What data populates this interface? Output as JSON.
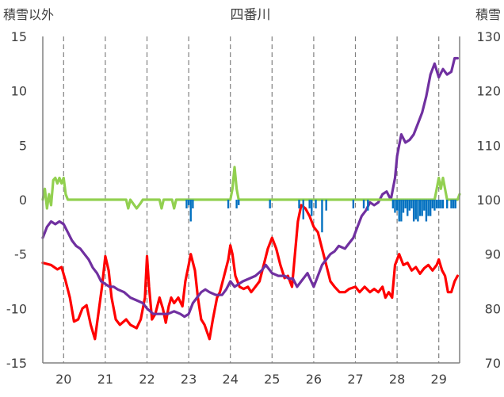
{
  "chart_data": {
    "type": "line",
    "title": "四番川",
    "ylabel_left": "積雪以外",
    "ylabel_right": "積雪",
    "x_ticks": [
      "20",
      "21",
      "22",
      "23",
      "24",
      "25",
      "26",
      "27",
      "28",
      "29"
    ],
    "xlim": [
      19.5,
      29.5
    ],
    "ylim_left": [
      -15,
      15
    ],
    "ylim_right": [
      70,
      130
    ],
    "y_ticks_left": [
      "15",
      "10",
      "5",
      "0",
      "-5",
      "-10",
      "-15"
    ],
    "y_ticks_right": [
      "130",
      "120",
      "110",
      "100",
      "90",
      "80",
      "70"
    ],
    "grid": {
      "vertical_dashed": true,
      "horizontal": false
    },
    "colors": {
      "red": "#ff0000",
      "purple": "#7030a0",
      "green": "#92d050",
      "blue": "#0070c0",
      "axis": "#808080"
    },
    "series": [
      {
        "color": "red",
        "axis": "left",
        "points": [
          [
            19.5,
            -5.8
          ],
          [
            19.7,
            -6.0
          ],
          [
            19.85,
            -6.4
          ],
          [
            19.95,
            -6.2
          ],
          [
            20.05,
            -7.5
          ],
          [
            20.15,
            -9.0
          ],
          [
            20.25,
            -11.2
          ],
          [
            20.35,
            -11.0
          ],
          [
            20.45,
            -10.0
          ],
          [
            20.55,
            -9.7
          ],
          [
            20.65,
            -11.5
          ],
          [
            20.75,
            -12.8
          ],
          [
            20.85,
            -10.0
          ],
          [
            20.92,
            -8.0
          ],
          [
            21.0,
            -5.2
          ],
          [
            21.08,
            -6.5
          ],
          [
            21.15,
            -9.0
          ],
          [
            21.25,
            -11.0
          ],
          [
            21.35,
            -11.5
          ],
          [
            21.5,
            -11.0
          ],
          [
            21.6,
            -11.5
          ],
          [
            21.75,
            -11.8
          ],
          [
            21.85,
            -11.0
          ],
          [
            21.95,
            -9.0
          ],
          [
            22.0,
            -5.2
          ],
          [
            22.05,
            -8.0
          ],
          [
            22.12,
            -11.0
          ],
          [
            22.2,
            -10.5
          ],
          [
            22.3,
            -9.0
          ],
          [
            22.38,
            -10.0
          ],
          [
            22.45,
            -11.3
          ],
          [
            22.52,
            -9.8
          ],
          [
            22.58,
            -9.0
          ],
          [
            22.65,
            -9.5
          ],
          [
            22.75,
            -9.0
          ],
          [
            22.85,
            -9.8
          ],
          [
            22.92,
            -7.5
          ],
          [
            23.0,
            -6.0
          ],
          [
            23.05,
            -5.0
          ],
          [
            23.15,
            -6.5
          ],
          [
            23.22,
            -9.0
          ],
          [
            23.3,
            -11.0
          ],
          [
            23.38,
            -11.5
          ],
          [
            23.5,
            -12.8
          ],
          [
            23.58,
            -11.0
          ],
          [
            23.68,
            -9.0
          ],
          [
            23.75,
            -8.5
          ],
          [
            23.85,
            -7.0
          ],
          [
            23.95,
            -5.5
          ],
          [
            24.0,
            -4.2
          ],
          [
            24.05,
            -5.0
          ],
          [
            24.12,
            -7.0
          ],
          [
            24.22,
            -8.0
          ],
          [
            24.32,
            -8.2
          ],
          [
            24.42,
            -8.0
          ],
          [
            24.5,
            -8.5
          ],
          [
            24.6,
            -8.0
          ],
          [
            24.7,
            -7.5
          ],
          [
            24.8,
            -6.0
          ],
          [
            24.9,
            -4.5
          ],
          [
            25.0,
            -3.5
          ],
          [
            25.1,
            -4.5
          ],
          [
            25.2,
            -6.0
          ],
          [
            25.3,
            -7.2
          ],
          [
            25.38,
            -7.0
          ],
          [
            25.48,
            -8.0
          ],
          [
            25.55,
            -5.0
          ],
          [
            25.62,
            -2.0
          ],
          [
            25.7,
            -0.5
          ],
          [
            25.8,
            -0.8
          ],
          [
            25.9,
            -1.5
          ],
          [
            26.0,
            -2.5
          ],
          [
            26.1,
            -3.0
          ],
          [
            26.2,
            -4.5
          ],
          [
            26.3,
            -6.0
          ],
          [
            26.4,
            -7.5
          ],
          [
            26.5,
            -8.0
          ],
          [
            26.62,
            -8.5
          ],
          [
            26.75,
            -8.5
          ],
          [
            26.85,
            -8.2
          ],
          [
            27.0,
            -8.0
          ],
          [
            27.1,
            -8.5
          ],
          [
            27.22,
            -8.0
          ],
          [
            27.35,
            -8.5
          ],
          [
            27.45,
            -8.2
          ],
          [
            27.55,
            -8.5
          ],
          [
            27.65,
            -8.0
          ],
          [
            27.72,
            -9.0
          ],
          [
            27.8,
            -8.5
          ],
          [
            27.88,
            -9.0
          ],
          [
            27.95,
            -6.0
          ],
          [
            28.05,
            -5.0
          ],
          [
            28.15,
            -6.0
          ],
          [
            28.25,
            -5.8
          ],
          [
            28.35,
            -6.5
          ],
          [
            28.45,
            -6.2
          ],
          [
            28.55,
            -6.8
          ],
          [
            28.65,
            -6.3
          ],
          [
            28.75,
            -6.0
          ],
          [
            28.85,
            -6.5
          ],
          [
            28.95,
            -6.0
          ],
          [
            29.0,
            -5.5
          ],
          [
            29.08,
            -6.5
          ],
          [
            29.15,
            -7.0
          ],
          [
            29.22,
            -8.5
          ],
          [
            29.3,
            -8.5
          ],
          [
            29.38,
            -7.5
          ],
          [
            29.45,
            -7.0
          ]
        ]
      },
      {
        "color": "purple",
        "axis": "right",
        "points": [
          [
            19.5,
            93.0
          ],
          [
            19.6,
            95.0
          ],
          [
            19.7,
            96.0
          ],
          [
            19.8,
            95.5
          ],
          [
            19.9,
            96.0
          ],
          [
            20.0,
            95.5
          ],
          [
            20.1,
            94.0
          ],
          [
            20.2,
            92.5
          ],
          [
            20.3,
            91.5
          ],
          [
            20.4,
            91.0
          ],
          [
            20.5,
            90.0
          ],
          [
            20.6,
            89.0
          ],
          [
            20.7,
            87.5
          ],
          [
            20.8,
            86.5
          ],
          [
            20.9,
            85.0
          ],
          [
            21.0,
            84.5
          ],
          [
            21.1,
            84.0
          ],
          [
            21.2,
            84.0
          ],
          [
            21.3,
            83.5
          ],
          [
            21.45,
            83.0
          ],
          [
            21.6,
            82.0
          ],
          [
            21.75,
            81.5
          ],
          [
            21.9,
            81.0
          ],
          [
            22.0,
            80.0
          ],
          [
            22.15,
            79.0
          ],
          [
            22.3,
            79.0
          ],
          [
            22.5,
            79.0
          ],
          [
            22.65,
            79.5
          ],
          [
            22.8,
            79.0
          ],
          [
            22.9,
            78.5
          ],
          [
            23.0,
            79.0
          ],
          [
            23.1,
            81.0
          ],
          [
            23.2,
            82.0
          ],
          [
            23.3,
            83.0
          ],
          [
            23.4,
            83.5
          ],
          [
            23.5,
            83.0
          ],
          [
            23.65,
            82.5
          ],
          [
            23.8,
            82.5
          ],
          [
            23.9,
            83.5
          ],
          [
            24.0,
            85.0
          ],
          [
            24.1,
            84.0
          ],
          [
            24.2,
            84.5
          ],
          [
            24.3,
            85.0
          ],
          [
            24.45,
            85.5
          ],
          [
            24.6,
            86.0
          ],
          [
            24.75,
            87.0
          ],
          [
            24.85,
            88.0
          ],
          [
            25.0,
            86.5
          ],
          [
            25.15,
            86.0
          ],
          [
            25.3,
            86.0
          ],
          [
            25.4,
            85.5
          ],
          [
            25.5,
            85.5
          ],
          [
            25.6,
            84.0
          ],
          [
            25.7,
            85.0
          ],
          [
            25.85,
            86.5
          ],
          [
            26.0,
            84.0
          ],
          [
            26.1,
            86.0
          ],
          [
            26.2,
            88.0
          ],
          [
            26.3,
            89.0
          ],
          [
            26.4,
            90.0
          ],
          [
            26.5,
            90.5
          ],
          [
            26.6,
            91.5
          ],
          [
            26.75,
            91.0
          ],
          [
            26.85,
            92.0
          ],
          [
            26.95,
            93.0
          ],
          [
            27.05,
            95.0
          ],
          [
            27.15,
            97.0
          ],
          [
            27.25,
            98.0
          ],
          [
            27.35,
            99.5
          ],
          [
            27.45,
            99.0
          ],
          [
            27.55,
            99.5
          ],
          [
            27.65,
            101.0
          ],
          [
            27.75,
            101.5
          ],
          [
            27.85,
            100.0
          ],
          [
            27.95,
            104.0
          ],
          [
            28.0,
            108.0
          ],
          [
            28.05,
            110.0
          ],
          [
            28.1,
            112.0
          ],
          [
            28.2,
            110.5
          ],
          [
            28.3,
            111.0
          ],
          [
            28.4,
            112.0
          ],
          [
            28.5,
            114.0
          ],
          [
            28.6,
            116.0
          ],
          [
            28.7,
            119.0
          ],
          [
            28.8,
            123.0
          ],
          [
            28.9,
            125.0
          ],
          [
            29.0,
            122.5
          ],
          [
            29.1,
            124.0
          ],
          [
            29.2,
            123.0
          ],
          [
            29.3,
            123.5
          ],
          [
            29.38,
            126.0
          ],
          [
            29.45,
            126.0
          ]
        ]
      },
      {
        "color": "green",
        "axis": "left",
        "points": [
          [
            19.5,
            0.0
          ],
          [
            19.55,
            1.0
          ],
          [
            19.6,
            -0.8
          ],
          [
            19.65,
            0.5
          ],
          [
            19.7,
            -0.5
          ],
          [
            19.75,
            1.8
          ],
          [
            19.8,
            2.0
          ],
          [
            19.85,
            1.5
          ],
          [
            19.9,
            2.0
          ],
          [
            19.95,
            1.5
          ],
          [
            20.0,
            2.0
          ],
          [
            20.05,
            0.5
          ],
          [
            20.1,
            0.0
          ],
          [
            21.0,
            0.0
          ],
          [
            21.5,
            0.0
          ],
          [
            21.55,
            -0.8
          ],
          [
            21.6,
            0.0
          ],
          [
            21.75,
            -0.8
          ],
          [
            21.85,
            -0.3
          ],
          [
            21.9,
            0.0
          ],
          [
            22.3,
            0.0
          ],
          [
            22.35,
            -0.8
          ],
          [
            22.4,
            0.0
          ],
          [
            22.6,
            0.0
          ],
          [
            22.65,
            -0.8
          ],
          [
            22.7,
            0.0
          ],
          [
            24.0,
            0.0
          ],
          [
            24.05,
            1.0
          ],
          [
            24.1,
            3.0
          ],
          [
            24.15,
            1.0
          ],
          [
            24.2,
            0.0
          ],
          [
            28.9,
            0.0
          ],
          [
            28.95,
            1.0
          ],
          [
            29.0,
            2.0
          ],
          [
            29.05,
            1.0
          ],
          [
            29.1,
            2.0
          ],
          [
            29.15,
            1.0
          ],
          [
            29.2,
            0.0
          ],
          [
            29.45,
            0.0
          ],
          [
            29.5,
            0.5
          ]
        ]
      },
      {
        "color": "blue",
        "axis": "left",
        "style": "bars",
        "points": [
          [
            22.95,
            -0.8
          ],
          [
            23.0,
            -0.5
          ],
          [
            23.05,
            -2.0
          ],
          [
            23.1,
            -0.8
          ],
          [
            23.95,
            -0.8
          ],
          [
            24.15,
            -0.8
          ],
          [
            24.2,
            -0.5
          ],
          [
            24.95,
            -0.8
          ],
          [
            25.65,
            -0.8
          ],
          [
            25.75,
            -1.8
          ],
          [
            25.9,
            -0.8
          ],
          [
            25.95,
            -1.5
          ],
          [
            26.05,
            -0.8
          ],
          [
            26.2,
            -3.0
          ],
          [
            26.3,
            -1.0
          ],
          [
            26.95,
            -0.8
          ],
          [
            27.2,
            -0.8
          ],
          [
            27.3,
            -1.0
          ],
          [
            27.9,
            -0.8
          ],
          [
            27.95,
            -1.2
          ],
          [
            28.0,
            -1.0
          ],
          [
            28.05,
            -2.0
          ],
          [
            28.1,
            -2.0
          ],
          [
            28.15,
            -1.2
          ],
          [
            28.2,
            -0.8
          ],
          [
            28.25,
            -1.5
          ],
          [
            28.3,
            -1.0
          ],
          [
            28.35,
            -0.8
          ],
          [
            28.4,
            -2.0
          ],
          [
            28.45,
            -1.8
          ],
          [
            28.5,
            -2.0
          ],
          [
            28.55,
            -1.5
          ],
          [
            28.6,
            -1.5
          ],
          [
            28.65,
            -1.0
          ],
          [
            28.7,
            -2.0
          ],
          [
            28.75,
            -1.5
          ],
          [
            28.8,
            -1.5
          ],
          [
            28.85,
            -0.8
          ],
          [
            28.9,
            -1.0
          ],
          [
            28.95,
            -0.8
          ],
          [
            29.0,
            -0.8
          ],
          [
            29.05,
            -0.8
          ],
          [
            29.1,
            -0.8
          ],
          [
            29.2,
            -0.8
          ],
          [
            29.3,
            -0.8
          ],
          [
            29.35,
            -0.8
          ],
          [
            29.4,
            -0.8
          ]
        ]
      }
    ]
  }
}
